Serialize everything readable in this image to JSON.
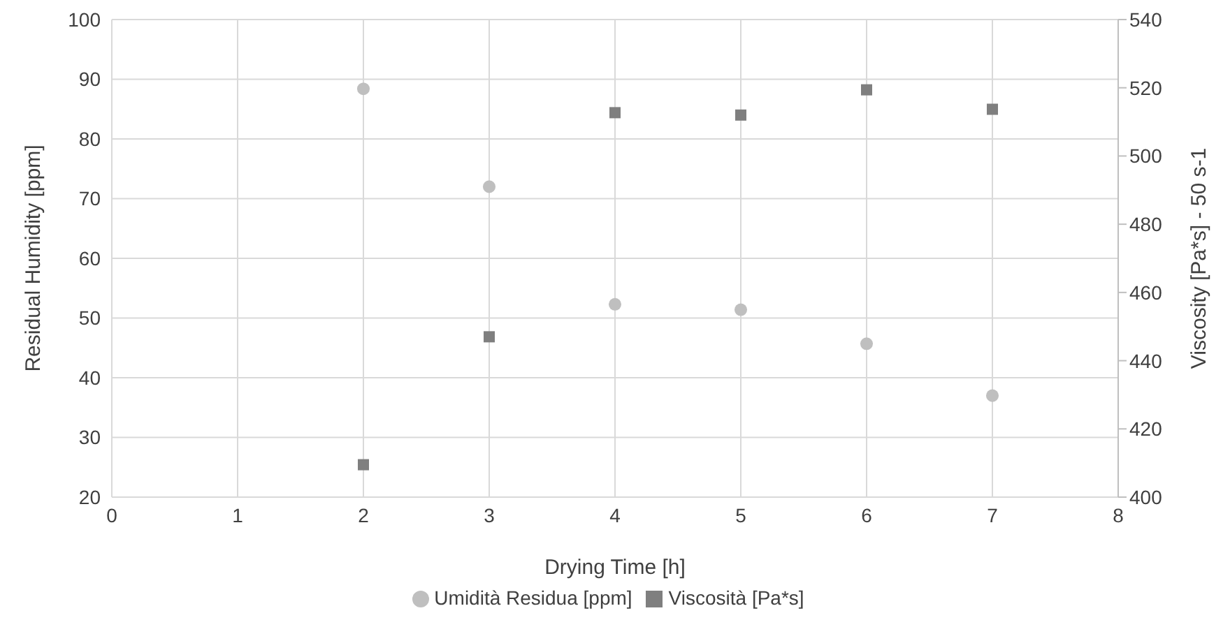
{
  "chart_data": {
    "type": "scatter",
    "xlabel": "Drying Time [h]",
    "ylabel": "Residual Humidity [ppm]",
    "y2label": "Viscosity [Pa*s] - 50 s-1",
    "x": [
      2,
      3,
      4,
      5,
      6,
      7
    ],
    "series": [
      {
        "name": "Umidità Residua [ppm]",
        "color": "#bfbfbf",
        "marker": "circle",
        "values": [
          88.4,
          72,
          52.3,
          51.4,
          45.7,
          37
        ]
      },
      {
        "name": "Viscosità [Pa*s]",
        "color": "#7f7f7f",
        "marker": "square",
        "axis": "y2",
        "values": [
          409.5,
          447,
          512.7,
          512,
          519.4,
          513.7
        ]
      }
    ],
    "xlim": [
      0,
      8
    ],
    "xticks": [
      0,
      1,
      2,
      3,
      4,
      5,
      6,
      7,
      8
    ],
    "ylim": [
      20,
      100
    ],
    "yticks": [
      20,
      30,
      40,
      50,
      60,
      70,
      80,
      90,
      100
    ],
    "y2lim": [
      400,
      540
    ],
    "y2ticks": [
      400,
      420,
      440,
      460,
      480,
      500,
      520,
      540
    ],
    "grid": true,
    "legend": "bottom"
  }
}
